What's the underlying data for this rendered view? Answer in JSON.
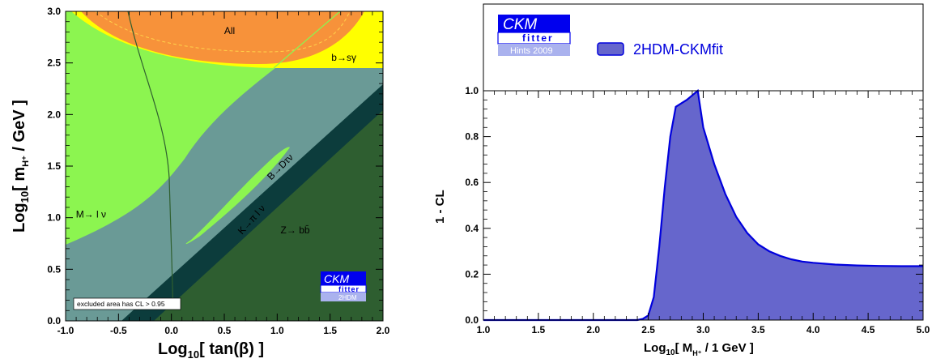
{
  "chart_data": [
    {
      "type": "area",
      "xlabel_base": "Log",
      "xlabel_sub": "10",
      "xlabel_rest": "[ tan(β) ]",
      "ylabel_base": "Log",
      "ylabel_sub": "10",
      "ylabel_mid": "[ m",
      "ylabel_sub2": "H⁺",
      "ylabel_rest": " / GeV ]",
      "xlim": [
        -1.0,
        2.0
      ],
      "ylim": [
        0.0,
        3.0
      ],
      "xticks": [
        "-1.0",
        "-0.5",
        "0.0",
        "0.5",
        "1.0",
        "1.5",
        "2.0"
      ],
      "yticks": [
        "0.0",
        "0.5",
        "1.0",
        "1.5",
        "2.0",
        "2.5",
        "3.0"
      ],
      "regions": [
        {
          "label": "All",
          "x": 0.55,
          "y": 2.78
        },
        {
          "label": "b→sγ",
          "x": 1.63,
          "y": 2.52
        },
        {
          "label": "M→ l ν",
          "x": -0.76,
          "y": 1.0
        },
        {
          "label": "K→π l ν",
          "x": 0.78,
          "y": 0.96,
          "angle": -48
        },
        {
          "label": "B→Dτν",
          "x": 1.05,
          "y": 1.47,
          "angle": -45
        },
        {
          "label": "Z→ bb̄",
          "x": 1.17,
          "y": 0.85
        }
      ],
      "note": "excluded area has CL > 0.95",
      "colors": {
        "all": "#f7923a",
        "bsg": "#ffff00",
        "mlnu": "#8cf550",
        "bdtaunu": "#6a9a96",
        "kpilnu": "#0c3c3c",
        "zbb": "#2e5e30",
        "curve": "#2f5f2f"
      },
      "logo": {
        "top": "CKM",
        "middle": "fitter",
        "bottom": "2HDM"
      }
    },
    {
      "type": "area",
      "xlabel_base": "Log",
      "xlabel_sub": "10",
      "xlabel_mid": "[ M",
      "xlabel_sub2": "H⁺",
      "xlabel_rest": " / 1 GeV ]",
      "ylabel": "1 - CL",
      "xlim": [
        1.0,
        5.0
      ],
      "ylim": [
        0.0,
        1.0
      ],
      "xticks": [
        "1.0",
        "1.5",
        "2.0",
        "2.5",
        "3.0",
        "3.5",
        "4.0",
        "4.5",
        "5.0"
      ],
      "yticks": [
        "0.0",
        "0.2",
        "0.4",
        "0.6",
        "0.8",
        "1.0"
      ],
      "series": [
        {
          "name": "2HDM-CKMfit",
          "fill": "#6666cc",
          "stroke": "#0000dd",
          "x": [
            1.0,
            2.4,
            2.45,
            2.5,
            2.55,
            2.6,
            2.65,
            2.7,
            2.75,
            2.8,
            2.85,
            2.9,
            2.95,
            3.0,
            3.1,
            3.2,
            3.3,
            3.4,
            3.5,
            3.6,
            3.7,
            3.8,
            3.9,
            4.0,
            4.2,
            4.4,
            4.6,
            4.8,
            5.0
          ],
          "y": [
            0.0,
            0.0,
            0.005,
            0.02,
            0.1,
            0.32,
            0.58,
            0.8,
            0.93,
            0.945,
            0.96,
            0.98,
            1.0,
            0.84,
            0.68,
            0.55,
            0.45,
            0.38,
            0.33,
            0.3,
            0.28,
            0.265,
            0.255,
            0.25,
            0.242,
            0.238,
            0.236,
            0.235,
            0.235
          ]
        }
      ],
      "logo": {
        "top": "CKM",
        "middle": "fitter",
        "bottom": "Hints 2009"
      }
    }
  ]
}
